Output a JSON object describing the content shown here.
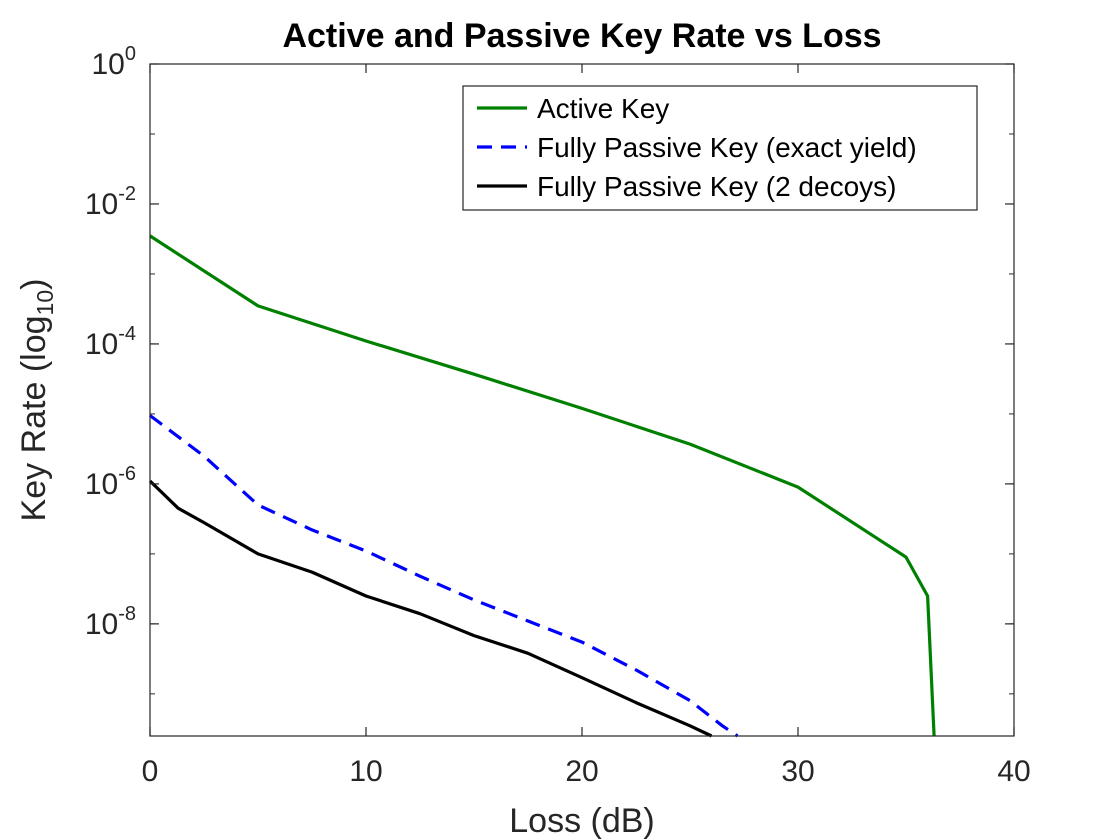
{
  "chart_data": {
    "type": "line",
    "title": "Active and Passive Key Rate vs Loss",
    "xlabel": "Loss (dB)",
    "ylabel_main": "Key Rate (log",
    "ylabel_sub": "10",
    "ylabel_end": ")",
    "xlim": [
      0,
      40
    ],
    "ylim": [
      2.5e-10,
      1
    ],
    "yscale": "log",
    "grid": false,
    "legend_position": "top-right",
    "x_ticks": [
      0,
      10,
      20,
      30,
      40
    ],
    "x_tick_labels": [
      "0",
      "10",
      "20",
      "30",
      "40"
    ],
    "y_ticks": [
      1e-08,
      1e-06,
      0.0001,
      0.01,
      1
    ],
    "y_tick_labels": [
      {
        "base": "10",
        "exp": "-8"
      },
      {
        "base": "10",
        "exp": "-6"
      },
      {
        "base": "10",
        "exp": "-4"
      },
      {
        "base": "10",
        "exp": "-2"
      },
      {
        "base": "10",
        "exp": "0"
      }
    ],
    "series": [
      {
        "name": "Active Key",
        "color": "#008000",
        "line_style": "solid",
        "x": [
          0,
          5,
          10,
          15,
          20,
          25,
          30,
          35,
          36,
          36.3
        ],
        "y": [
          0.0035,
          0.00035,
          0.00011,
          3.7e-05,
          1.2e-05,
          3.7e-06,
          9e-07,
          9e-08,
          2.5e-08,
          2.5e-10
        ]
      },
      {
        "name": "Fully Passive Key (exact yield)",
        "color": "#0000ff",
        "line_style": "dashed",
        "x": [
          0,
          2.5,
          5,
          7.5,
          10,
          12.5,
          15,
          17.5,
          20,
          22.5,
          25,
          26.5,
          27.2
        ],
        "y": [
          9.5e-06,
          2.5e-06,
          5e-07,
          2.2e-07,
          1.1e-07,
          4.8e-08,
          2.2e-08,
          1.1e-08,
          5.5e-09,
          2.2e-09,
          8e-10,
          3.5e-10,
          2.5e-10
        ]
      },
      {
        "name": "Fully Passive Key (2 decoys)",
        "color": "#000000",
        "line_style": "solid",
        "x": [
          0,
          1.3,
          2.5,
          5,
          7.5,
          10,
          12.5,
          15,
          17.5,
          20,
          22.5,
          25,
          26
        ],
        "y": [
          1.1e-06,
          4.5e-07,
          2.8e-07,
          1e-07,
          5.5e-08,
          2.5e-08,
          1.4e-08,
          6.8e-09,
          3.8e-09,
          1.7e-09,
          7.5e-10,
          3.5e-10,
          2.5e-10
        ]
      }
    ]
  }
}
